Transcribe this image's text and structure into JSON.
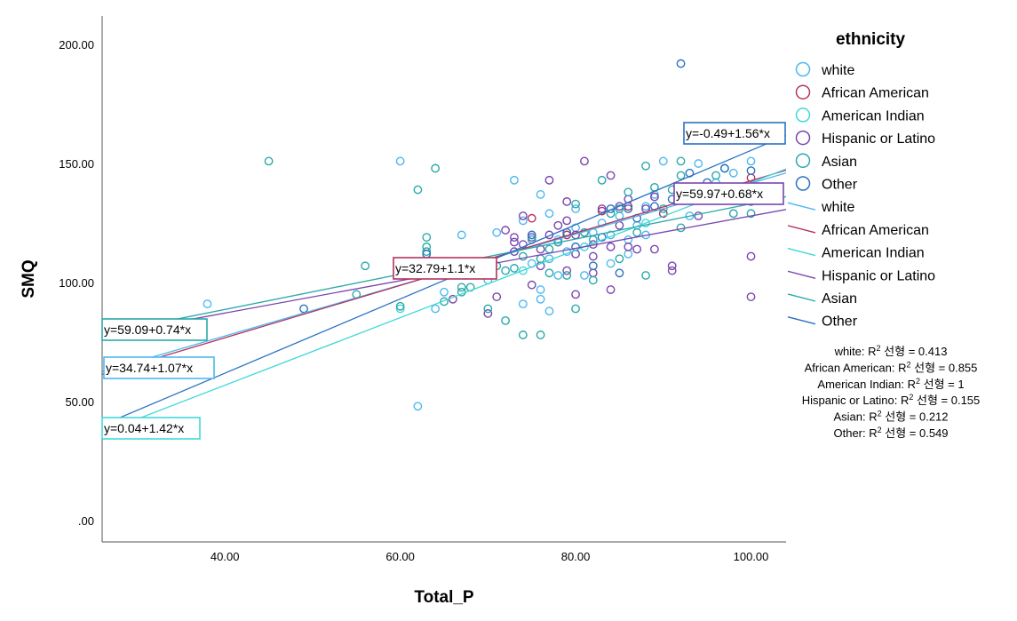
{
  "chart_data": {
    "type": "scatter",
    "xlabel": "Total_P",
    "ylabel": "SMQ",
    "xlim": [
      26,
      104
    ],
    "ylim": [
      -9,
      212
    ],
    "xticks": [
      {
        "value": 40,
        "label": "40.00"
      },
      {
        "value": 60,
        "label": "60.00"
      },
      {
        "value": 80,
        "label": "80.00"
      },
      {
        "value": 100,
        "label": "100.00"
      }
    ],
    "yticks": [
      {
        "value": 0,
        "label": ".00"
      },
      {
        "value": 50,
        "label": "50.00"
      },
      {
        "value": 100,
        "label": "100.00"
      },
      {
        "value": 150,
        "label": "150.00"
      },
      {
        "value": 200,
        "label": "200.00"
      }
    ],
    "grid": false,
    "legend": {
      "title": "ethnicity",
      "position": "right",
      "marker_entries": [
        "white",
        "African American",
        "American Indian",
        "Hispanic or Latino",
        "Asian",
        "Other"
      ],
      "line_entries": [
        "white",
        "African American",
        "American Indian",
        "Hispanic or Latino",
        "Asian",
        "Other"
      ]
    },
    "r2_lines": [
      {
        "prefix": "white: R",
        "suffix": " 선형 = 0.413"
      },
      {
        "prefix": "African American: R",
        "suffix": " 선형 = 0.855"
      },
      {
        "prefix": "American Indian: R",
        "suffix": " 선형 = 1"
      },
      {
        "prefix": "Hispanic or Latino: R",
        "suffix": " 선형 = 0.155"
      },
      {
        "prefix": "Asian: R",
        "suffix": " 선형 = 0.212"
      },
      {
        "prefix": "Other: R",
        "suffix": " 선형 = 0.549"
      }
    ],
    "series": [
      {
        "name": "white",
        "color": "#4db8f0",
        "fit": {
          "intercept": 34.74,
          "slope": 1.07,
          "x_range": [
            26,
            104
          ],
          "label": "y=34.74+1.07*x"
        },
        "points": [
          [
            38,
            91
          ],
          [
            60,
            151
          ],
          [
            62,
            48
          ],
          [
            64,
            89
          ],
          [
            65,
            96
          ],
          [
            67,
            120
          ],
          [
            70,
            101
          ],
          [
            71,
            121
          ],
          [
            73,
            143
          ],
          [
            74,
            91
          ],
          [
            74,
            126
          ],
          [
            75,
            108
          ],
          [
            76,
            137
          ],
          [
            76,
            97
          ],
          [
            76,
            93
          ],
          [
            77,
            129
          ],
          [
            77,
            88
          ],
          [
            77,
            110
          ],
          [
            78,
            118
          ],
          [
            79,
            113
          ],
          [
            80,
            123
          ],
          [
            81,
            103
          ],
          [
            82,
            121
          ],
          [
            83,
            125
          ],
          [
            84,
            120
          ],
          [
            85,
            128
          ],
          [
            86,
            118
          ],
          [
            87,
            124
          ],
          [
            88,
            132
          ],
          [
            89,
            137
          ],
          [
            90,
            151
          ],
          [
            92,
            138
          ],
          [
            93,
            128
          ],
          [
            94,
            150
          ],
          [
            96,
            142
          ],
          [
            98,
            146
          ],
          [
            100,
            151
          ],
          [
            80,
            131
          ],
          [
            78,
            103
          ],
          [
            84,
            108
          ],
          [
            86,
            112
          ],
          [
            88,
            120
          ]
        ]
      },
      {
        "name": "African American",
        "color": "#b5325c",
        "fit": {
          "intercept": 32.79,
          "slope": 1.1,
          "x_range": [
            26,
            104
          ],
          "label": "y=32.79+1.1*x"
        },
        "points": [
          [
            75,
            127
          ],
          [
            79,
            120
          ],
          [
            83,
            130
          ],
          [
            86,
            132
          ],
          [
            90,
            129
          ],
          [
            100,
            144
          ]
        ]
      },
      {
        "name": "American Indian",
        "color": "#40d8d8",
        "fit": {
          "intercept": 0.04,
          "slope": 1.42,
          "x_range": [
            26,
            104
          ],
          "label": "y=0.04+1.42*x"
        },
        "points": [
          [
            60,
            89
          ],
          [
            74,
            105
          ],
          [
            81,
            115
          ],
          [
            88,
            125
          ]
        ]
      },
      {
        "name": "Hispanic or Latino",
        "color": "#7a44b0",
        "fit": {
          "intercept": 59.97,
          "slope": 0.68,
          "x_range": [
            26,
            104
          ],
          "label": "y=59.97+0.68*x"
        },
        "points": [
          [
            66,
            93
          ],
          [
            70,
            87
          ],
          [
            71,
            94
          ],
          [
            72,
            122
          ],
          [
            73,
            119
          ],
          [
            73,
            113
          ],
          [
            74,
            128
          ],
          [
            75,
            99
          ],
          [
            75,
            119
          ],
          [
            76,
            107
          ],
          [
            76,
            114
          ],
          [
            77,
            120
          ],
          [
            77,
            143
          ],
          [
            78,
            117
          ],
          [
            78,
            124
          ],
          [
            79,
            105
          ],
          [
            79,
            134
          ],
          [
            80,
            95
          ],
          [
            80,
            120
          ],
          [
            80,
            112
          ],
          [
            81,
            151
          ],
          [
            81,
            121
          ],
          [
            82,
            111
          ],
          [
            82,
            104
          ],
          [
            83,
            131
          ],
          [
            84,
            145
          ],
          [
            84,
            97
          ],
          [
            84,
            115
          ],
          [
            85,
            124
          ],
          [
            86,
            135
          ],
          [
            86,
            115
          ],
          [
            87,
            114
          ],
          [
            88,
            131
          ],
          [
            89,
            136
          ],
          [
            89,
            114
          ],
          [
            91,
            107
          ],
          [
            91,
            105
          ],
          [
            94,
            128
          ],
          [
            100,
            111
          ],
          [
            100,
            94
          ],
          [
            100,
            138
          ],
          [
            73,
            117
          ],
          [
            74,
            116
          ],
          [
            79,
            126
          ],
          [
            82,
            116
          ],
          [
            85,
            132
          ]
        ]
      },
      {
        "name": "Asian",
        "color": "#2aa9a8",
        "fit": {
          "intercept": 59.09,
          "slope": 0.74,
          "x_range": [
            26,
            104
          ],
          "label": "y=59.09+0.74*x"
        },
        "points": [
          [
            45,
            151
          ],
          [
            55,
            95
          ],
          [
            56,
            107
          ],
          [
            60,
            90
          ],
          [
            62,
            139
          ],
          [
            63,
            119
          ],
          [
            63,
            113
          ],
          [
            63,
            115
          ],
          [
            64,
            148
          ],
          [
            65,
            92
          ],
          [
            67,
            98
          ],
          [
            67,
            96
          ],
          [
            68,
            98
          ],
          [
            70,
            89
          ],
          [
            71,
            107
          ],
          [
            72,
            84
          ],
          [
            72,
            105
          ],
          [
            73,
            106
          ],
          [
            74,
            78
          ],
          [
            74,
            111
          ],
          [
            75,
            118
          ],
          [
            76,
            78
          ],
          [
            76,
            110
          ],
          [
            77,
            114
          ],
          [
            77,
            104
          ],
          [
            78,
            117
          ],
          [
            79,
            103
          ],
          [
            80,
            89
          ],
          [
            80,
            133
          ],
          [
            81,
            121
          ],
          [
            82,
            101
          ],
          [
            82,
            118
          ],
          [
            83,
            143
          ],
          [
            84,
            129
          ],
          [
            85,
            110
          ],
          [
            85,
            131
          ],
          [
            86,
            138
          ],
          [
            87,
            121
          ],
          [
            88,
            103
          ],
          [
            88,
            149
          ],
          [
            89,
            140
          ],
          [
            90,
            131
          ],
          [
            92,
            151
          ],
          [
            92,
            145
          ],
          [
            92,
            123
          ],
          [
            93,
            135
          ],
          [
            96,
            145
          ],
          [
            98,
            129
          ],
          [
            100,
            134
          ],
          [
            100,
            129
          ],
          [
            100,
            140
          ],
          [
            97,
            148
          ],
          [
            94,
            140
          ],
          [
            91,
            139
          ]
        ]
      },
      {
        "name": "Other",
        "color": "#2a72c4",
        "fit": {
          "intercept": -0.49,
          "slope": 1.56,
          "x_range": [
            26,
            104
          ],
          "label": "y=-0.49+1.56*x"
        },
        "points": [
          [
            49,
            89
          ],
          [
            63,
            112
          ],
          [
            75,
            120
          ],
          [
            79,
            121
          ],
          [
            80,
            115
          ],
          [
            82,
            107
          ],
          [
            83,
            119
          ],
          [
            84,
            131
          ],
          [
            85,
            104
          ],
          [
            86,
            131
          ],
          [
            87,
            127
          ],
          [
            89,
            132
          ],
          [
            91,
            135
          ],
          [
            92,
            192
          ],
          [
            93,
            146
          ],
          [
            95,
            142
          ],
          [
            97,
            148
          ],
          [
            99,
            136
          ],
          [
            100,
            147
          ]
        ]
      }
    ],
    "fit_labels_placement": [
      {
        "series": "Asian",
        "anchor": "left"
      },
      {
        "series": "white",
        "anchor": "left"
      },
      {
        "series": "American Indian",
        "anchor": "left"
      },
      {
        "series": "African American",
        "anchor": "middle"
      },
      {
        "series": "Other",
        "anchor": "right-top"
      },
      {
        "series": "Hispanic or Latino",
        "anchor": "right"
      }
    ]
  }
}
